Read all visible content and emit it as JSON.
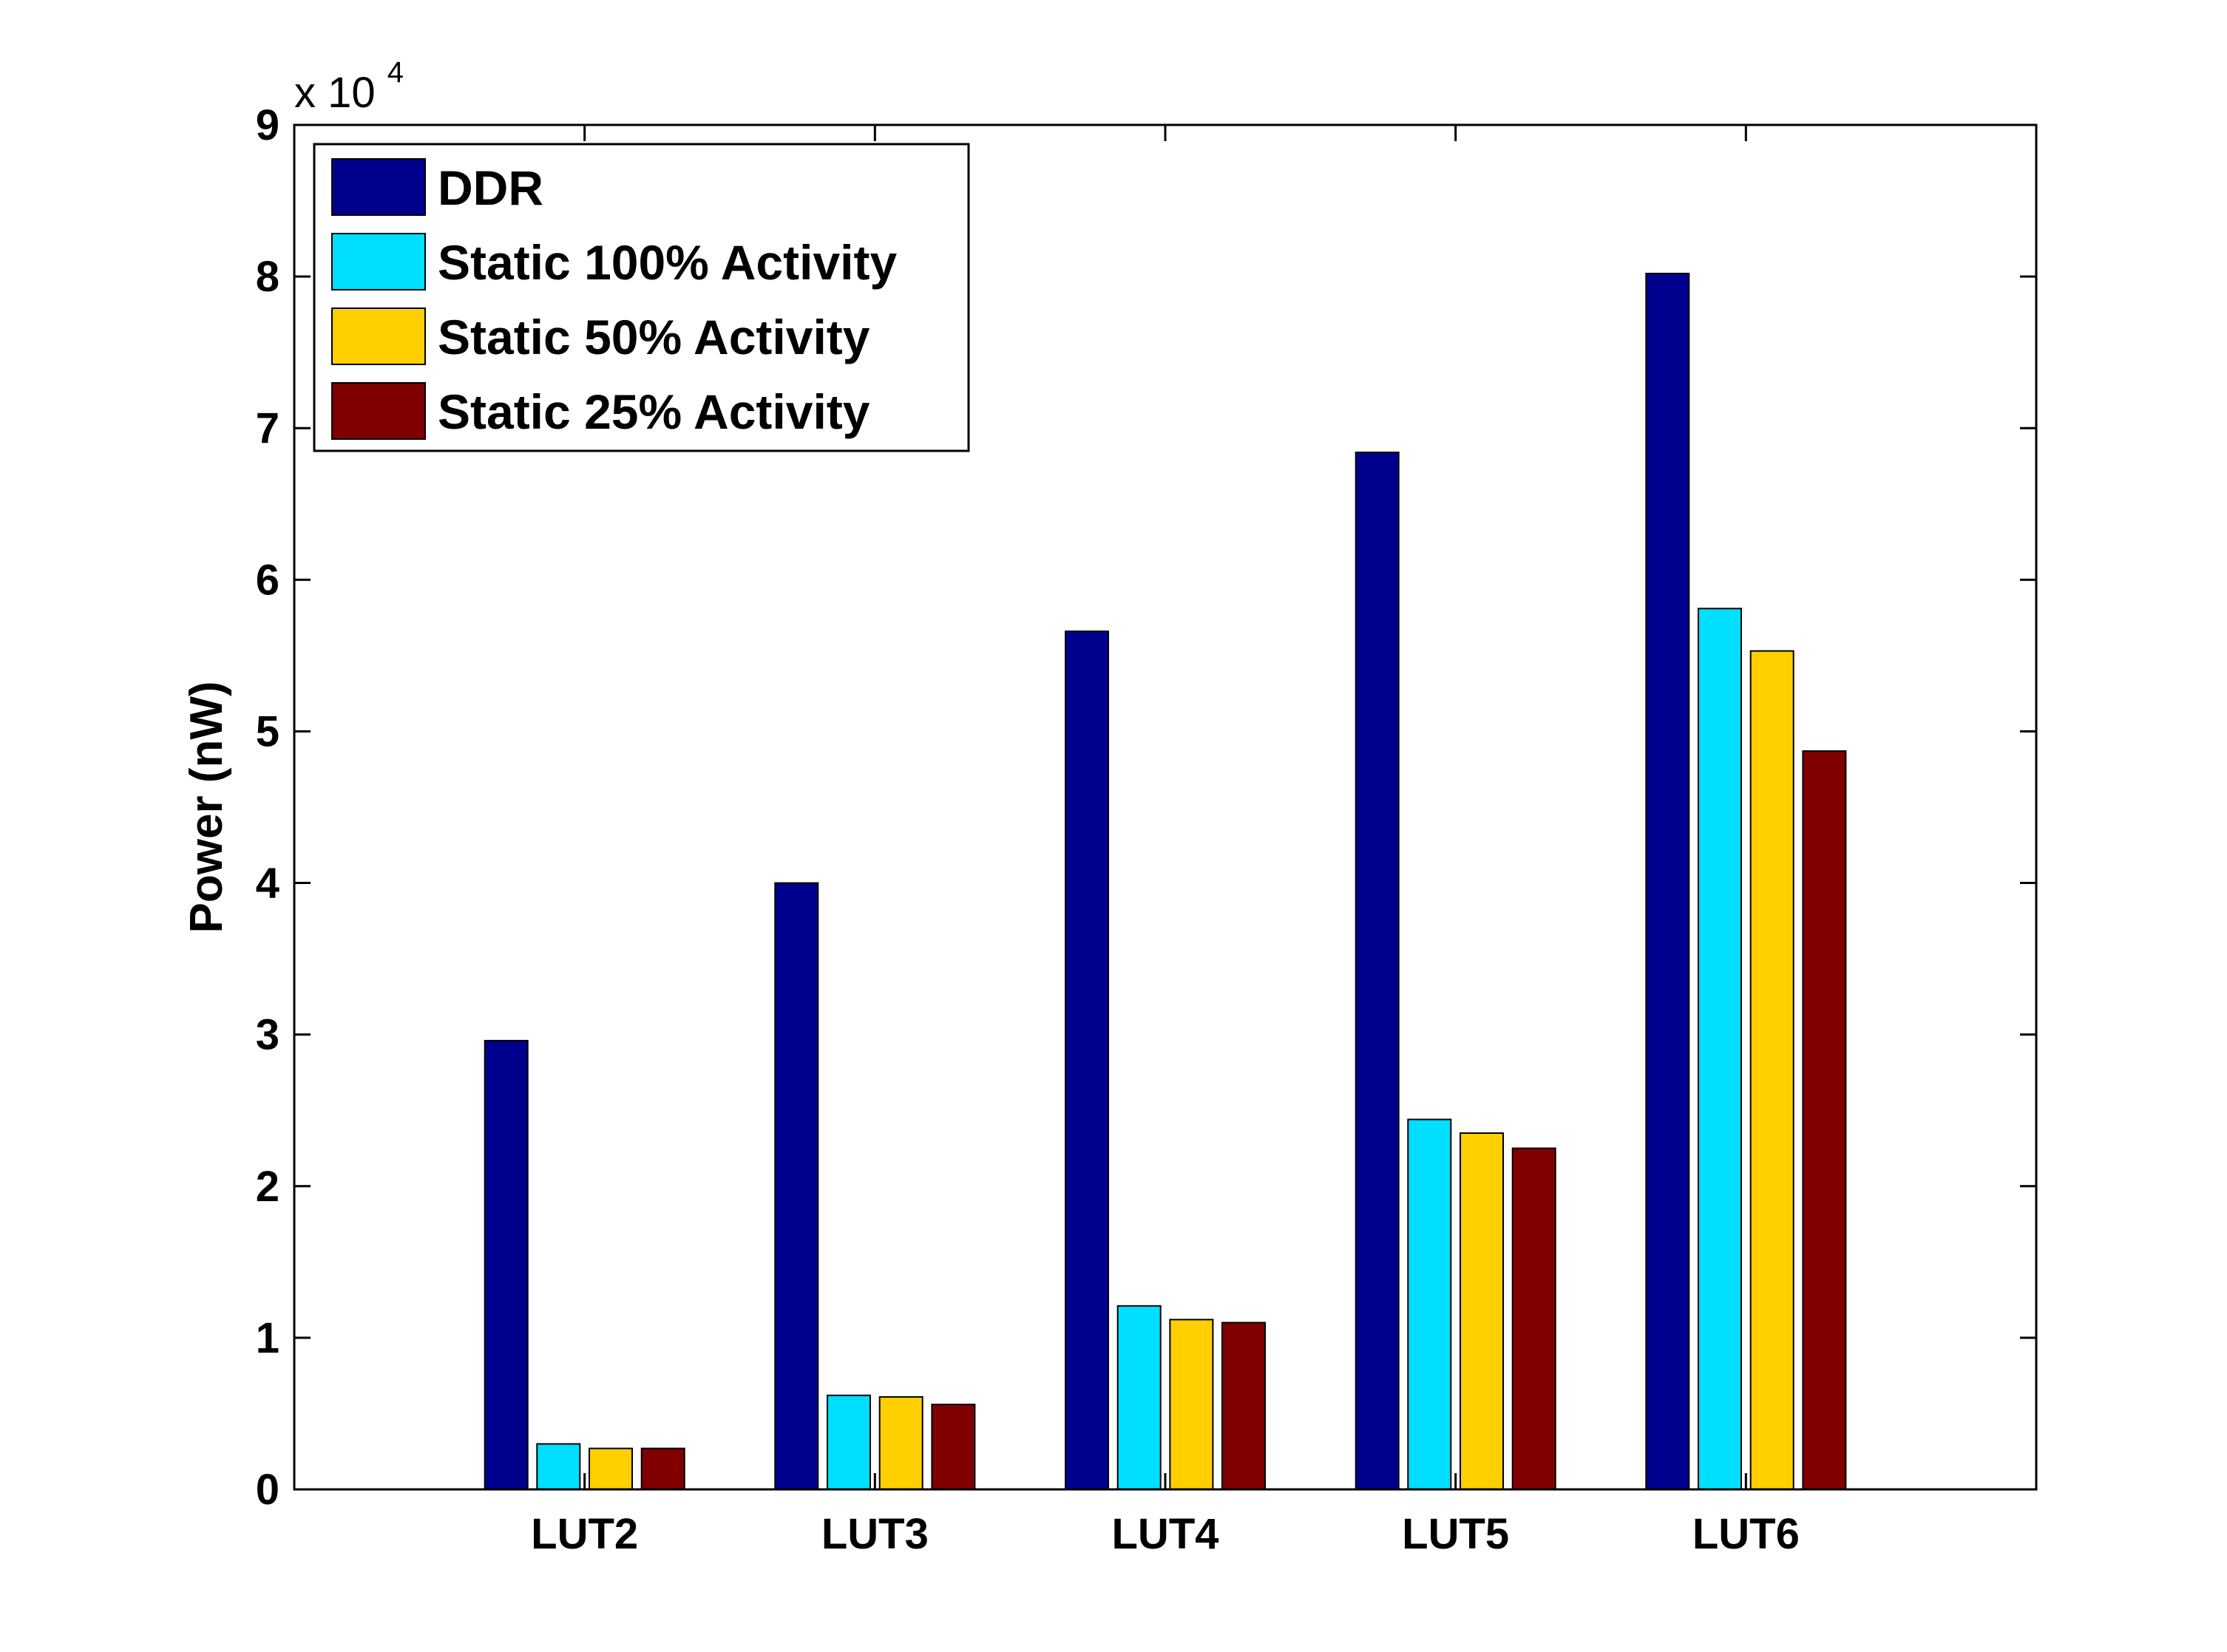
{
  "chart_data": {
    "type": "bar",
    "categories": [
      "LUT2",
      "LUT3",
      "LUT4",
      "LUT5",
      "LUT6"
    ],
    "series": [
      {
        "name": "DDR",
        "color": "#00008F",
        "values": [
          29600,
          40000,
          56600,
          68400,
          80200
        ]
      },
      {
        "name": "Static 100% Activity",
        "color": "#00DFFF",
        "values": [
          3000,
          6200,
          12100,
          24400,
          58100
        ]
      },
      {
        "name": "Static 50% Activity",
        "color": "#FFCF00",
        "values": [
          2700,
          6100,
          11200,
          23500,
          55300
        ]
      },
      {
        "name": "Static 25% Activity",
        "color": "#800000",
        "values": [
          2700,
          5600,
          11000,
          22500,
          48700
        ]
      }
    ],
    "xlabel": "",
    "ylabel": "Power (nW)",
    "ylim": [
      0,
      90000
    ],
    "yticks": [
      0,
      1,
      2,
      3,
      4,
      5,
      6,
      7,
      8,
      9
    ],
    "y_multiplier_base": "x 10",
    "y_multiplier_exp": "4",
    "legend_position": "top-left",
    "grid": false
  }
}
